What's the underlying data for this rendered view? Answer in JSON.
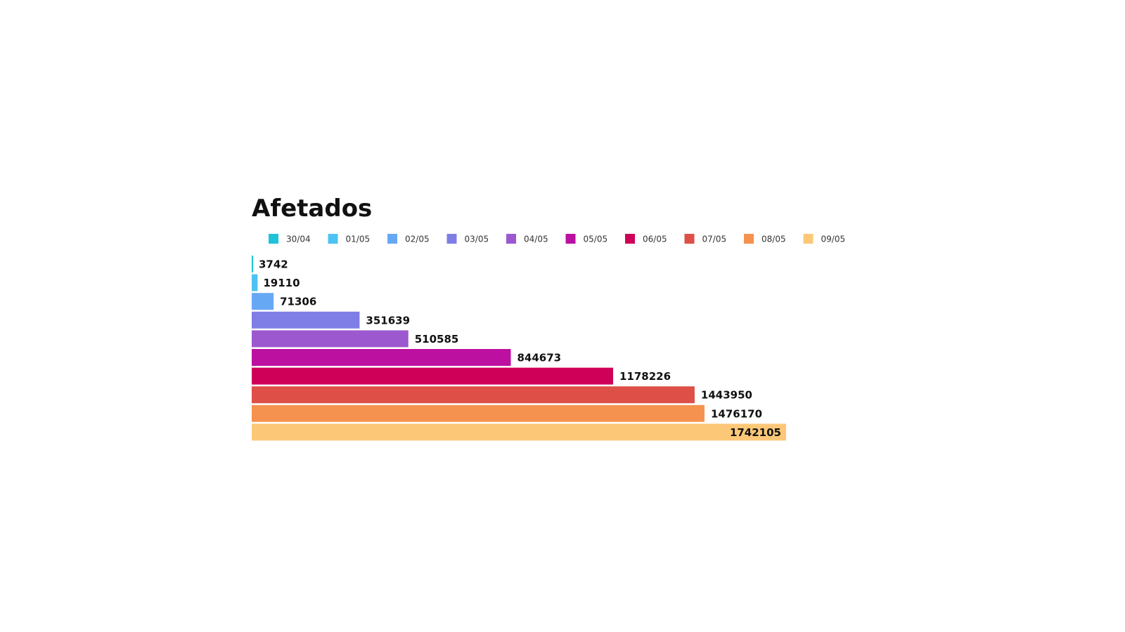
{
  "chart_data": {
    "type": "bar",
    "orientation": "horizontal",
    "title": "Afetados",
    "legend_position": "top",
    "grid": false,
    "xlim": [
      0,
      1742105
    ],
    "series": [
      {
        "name": "30/04",
        "value": 3742,
        "color": "#1FC2D8"
      },
      {
        "name": "01/05",
        "value": 19110,
        "color": "#4CC3F2"
      },
      {
        "name": "02/05",
        "value": 71306,
        "color": "#67A8F5"
      },
      {
        "name": "03/05",
        "value": 351639,
        "color": "#7E7EE6"
      },
      {
        "name": "04/05",
        "value": 510585,
        "color": "#9C59CF"
      },
      {
        "name": "05/05",
        "value": 844673,
        "color": "#BB10A0"
      },
      {
        "name": "06/05",
        "value": 1178226,
        "color": "#CF0058"
      },
      {
        "name": "07/05",
        "value": 1443950,
        "color": "#DE4F47"
      },
      {
        "name": "08/05",
        "value": 1476170,
        "color": "#F5924F"
      },
      {
        "name": "09/05",
        "value": 1742105,
        "color": "#FCC878"
      }
    ]
  }
}
